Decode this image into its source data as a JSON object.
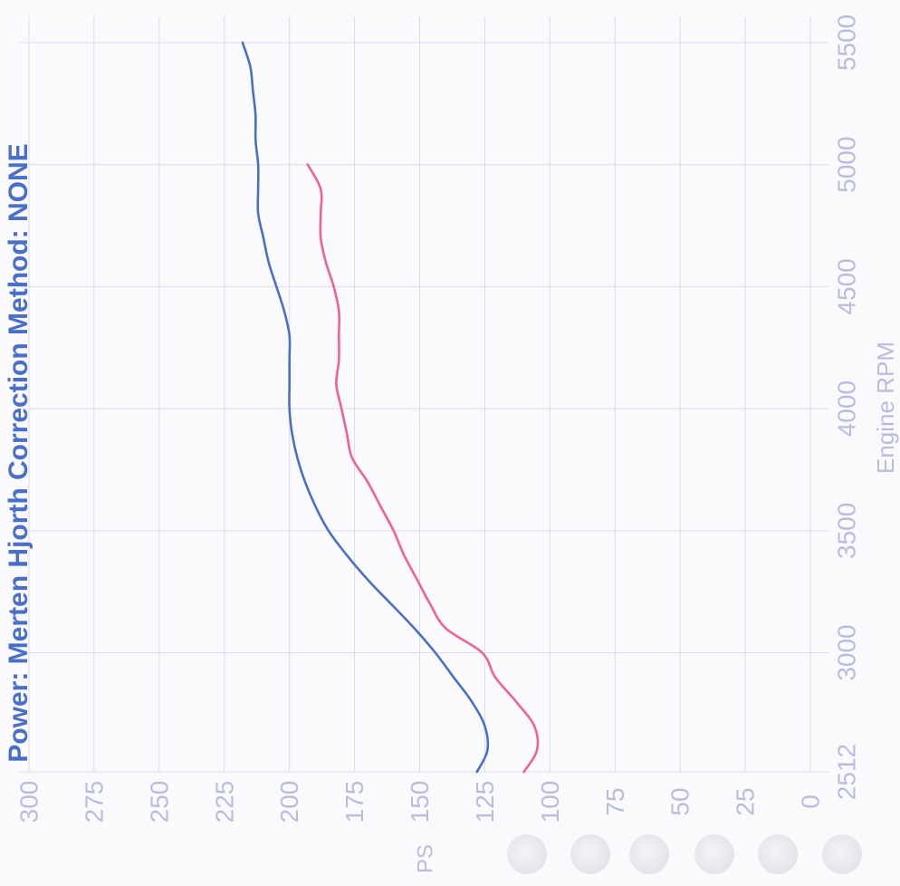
{
  "page": {
    "title": "Power: Merten Hjorth Correction Method: NONE"
  },
  "chart_data": {
    "type": "line",
    "orientation": "rotated-90",
    "xlabel": "Engine RPM",
    "ylabel": "PS",
    "xlim": [
      2512,
      5500
    ],
    "ylim": [
      0,
      300
    ],
    "x_ticks": [
      "2512",
      "3000",
      "3500",
      "4000",
      "4500",
      "5000",
      "5500"
    ],
    "y_ticks": [
      "0",
      "25",
      "50",
      "75",
      "100",
      "125",
      "150",
      "175",
      "200",
      "225",
      "250",
      "275",
      "300"
    ],
    "grid": true,
    "colors": {
      "blue": "#4a6fc8",
      "pink": "#f0609a",
      "grid": "#d8dcee",
      "text": "#b8bde0"
    },
    "series": [
      {
        "color": "#4a6fc8",
        "x": [
          2512,
          2600,
          2700,
          2800,
          2900,
          3000,
          3100,
          3200,
          3300,
          3400,
          3500,
          3600,
          3700,
          3800,
          3900,
          4000,
          4100,
          4200,
          4300,
          4400,
          4500,
          4600,
          4700,
          4800,
          4900,
          5000,
          5100,
          5200,
          5300,
          5400,
          5500
        ],
        "y": [
          128,
          124,
          125,
          130,
          137,
          144,
          152,
          161,
          170,
          178,
          185,
          190,
          194,
          197,
          199,
          200,
          200,
          200,
          200,
          202,
          205,
          208,
          210,
          212,
          212,
          212,
          213,
          213,
          214,
          215,
          218
        ]
      },
      {
        "color": "#f0609a",
        "x": [
          2512,
          2600,
          2700,
          2800,
          2900,
          3000,
          3100,
          3200,
          3300,
          3400,
          3500,
          3600,
          3700,
          3800,
          3900,
          4000,
          4100,
          4200,
          4300,
          4400,
          4500,
          4600,
          4700,
          4800,
          4900,
          5000
        ],
        "y": [
          110,
          105,
          106,
          113,
          121,
          126,
          140,
          146,
          151,
          156,
          160,
          165,
          170,
          176,
          178,
          180,
          182,
          181,
          181,
          181,
          183,
          186,
          188,
          188,
          188,
          193
        ]
      }
    ]
  }
}
